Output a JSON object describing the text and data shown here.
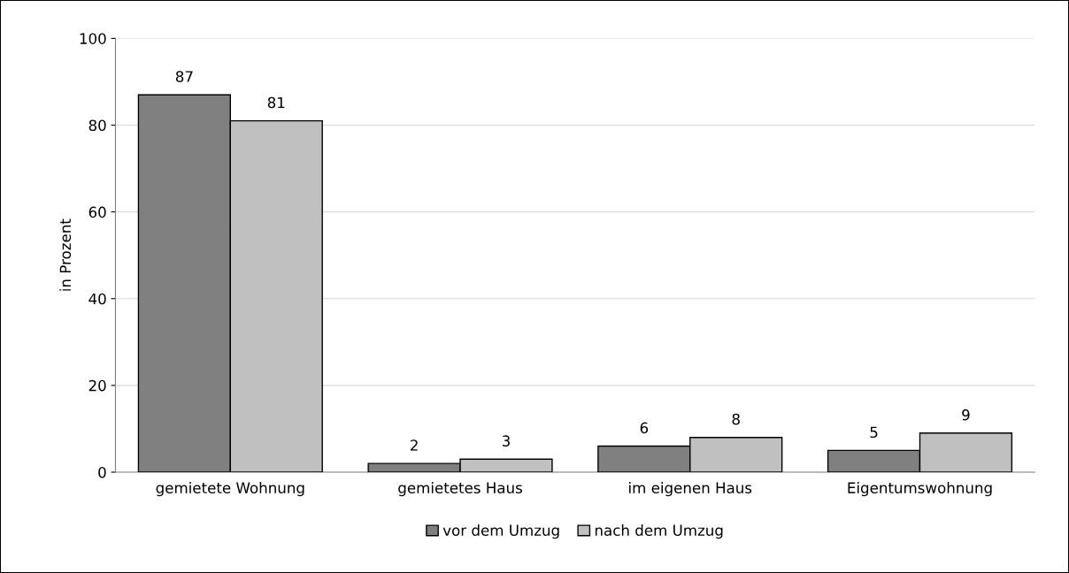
{
  "chart_data": {
    "type": "bar",
    "ylabel": "in Prozent",
    "categories": [
      "gemietete Wohnung",
      "gemietetes Haus",
      "im eigenen Haus",
      "Eigentumswohnung"
    ],
    "series": [
      {
        "name": "vor dem Umzug",
        "color": "#808080",
        "values": [
          87,
          2,
          6,
          5
        ]
      },
      {
        "name": "nach dem Umzug",
        "color": "#c0c0c0",
        "values": [
          81,
          3,
          8,
          9
        ]
      }
    ],
    "ylim": [
      0,
      100
    ],
    "yticks": [
      0,
      20,
      40,
      60,
      80,
      100
    ],
    "grid": "y",
    "legend": "bottom",
    "data_labels": true
  }
}
